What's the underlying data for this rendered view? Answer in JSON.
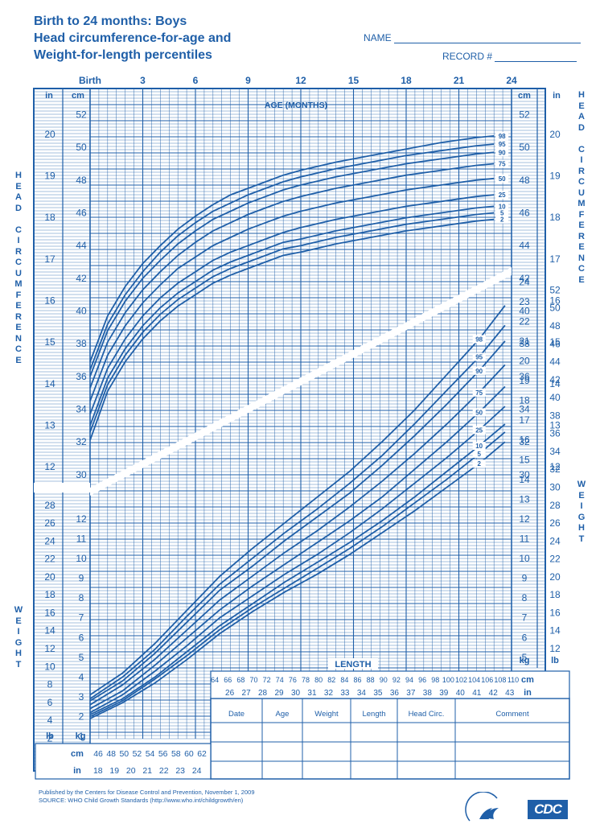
{
  "header": {
    "title_line1": "Birth to 24 months: Boys",
    "title_line2": "Head circumference-for-age and",
    "title_line3": "Weight-for-length percentiles",
    "name_label": "NAME",
    "record_label": "RECORD #"
  },
  "side_labels": {
    "head_circumference": "HEAD CIRCUMFERENCE",
    "weight": "WEIGHT"
  },
  "footer": {
    "line1": "Published by the Centers for Disease Control and Prevention, November 1, 2009",
    "line2": "SOURCE:  WHO Child Growth Standards (http://www.who.int/childgrowth/en)"
  },
  "logos": {
    "cdc": "CDC"
  },
  "record_table": {
    "columns": [
      "Date",
      "Age",
      "Weight",
      "Length",
      "Head Circ.",
      "Comment"
    ],
    "rows": 3
  },
  "chart_data": [
    {
      "type": "line",
      "title": "Head circumference-for-age",
      "xlabel": "AGE (MONTHS)",
      "ylabel": "HEAD CIRCUMFERENCE",
      "x_unit_top_label": "Birth",
      "x_tick_labels": [
        "Birth",
        "3",
        "6",
        "9",
        "12",
        "15",
        "18",
        "21",
        "24"
      ],
      "xlim": [
        0,
        24
      ],
      "ylim": [
        29.5,
        53.5
      ],
      "y_units": [
        "cm",
        "in"
      ],
      "y_cm_ticks": [
        30,
        32,
        34,
        36,
        38,
        40,
        42,
        44,
        46,
        48,
        50,
        52
      ],
      "y_in_ticks": [
        12,
        13,
        14,
        15,
        16,
        17,
        18,
        19,
        20
      ],
      "grid": true,
      "x": [
        0,
        1,
        2,
        3,
        4,
        5,
        6,
        7,
        8,
        9,
        10,
        11,
        12,
        14,
        16,
        18,
        20,
        22,
        23
      ],
      "series": [
        {
          "name": "2",
          "values": [
            32.1,
            35.1,
            36.9,
            38.3,
            39.4,
            40.3,
            41.0,
            41.7,
            42.2,
            42.6,
            43.0,
            43.4,
            43.6,
            44.1,
            44.5,
            44.9,
            45.2,
            45.5,
            45.6
          ]
        },
        {
          "name": "5",
          "values": [
            32.6,
            35.5,
            37.3,
            38.7,
            39.8,
            40.7,
            41.4,
            42.1,
            42.6,
            43.0,
            43.4,
            43.8,
            44.0,
            44.5,
            44.9,
            45.3,
            45.6,
            45.9,
            46.0
          ]
        },
        {
          "name": "10",
          "values": [
            33.0,
            35.9,
            37.7,
            39.1,
            40.2,
            41.1,
            41.8,
            42.5,
            43.0,
            43.4,
            43.8,
            44.2,
            44.4,
            44.9,
            45.3,
            45.7,
            46.0,
            46.3,
            46.4
          ]
        },
        {
          "name": "25",
          "values": [
            33.7,
            36.5,
            38.3,
            39.7,
            40.8,
            41.7,
            42.4,
            43.1,
            43.6,
            44.0,
            44.4,
            44.8,
            45.1,
            45.6,
            46.0,
            46.4,
            46.7,
            47.0,
            47.1
          ]
        },
        {
          "name": "50",
          "values": [
            34.5,
            37.3,
            39.1,
            40.5,
            41.6,
            42.6,
            43.3,
            44.0,
            44.5,
            45.0,
            45.4,
            45.8,
            46.1,
            46.6,
            47.0,
            47.4,
            47.7,
            48.0,
            48.1
          ]
        },
        {
          "name": "75",
          "values": [
            35.3,
            38.1,
            39.9,
            41.3,
            42.4,
            43.4,
            44.2,
            44.9,
            45.4,
            45.9,
            46.3,
            46.7,
            47.0,
            47.5,
            47.9,
            48.3,
            48.6,
            48.9,
            49.0
          ]
        },
        {
          "name": "90",
          "values": [
            36.0,
            38.8,
            40.6,
            42.0,
            43.1,
            44.1,
            44.9,
            45.6,
            46.1,
            46.6,
            47.0,
            47.4,
            47.7,
            48.2,
            48.6,
            49.0,
            49.3,
            49.6,
            49.7
          ]
        },
        {
          "name": "95",
          "values": [
            36.4,
            39.2,
            41.0,
            42.4,
            43.6,
            44.6,
            45.4,
            46.1,
            46.6,
            47.1,
            47.5,
            47.9,
            48.2,
            48.7,
            49.1,
            49.5,
            49.8,
            50.1,
            50.2
          ]
        },
        {
          "name": "98",
          "values": [
            36.9,
            39.7,
            41.5,
            42.9,
            44.0,
            45.0,
            45.8,
            46.5,
            47.1,
            47.5,
            47.9,
            48.3,
            48.6,
            49.1,
            49.5,
            49.9,
            50.3,
            50.6,
            50.7
          ]
        }
      ]
    },
    {
      "type": "line",
      "title": "Weight-for-length",
      "xlabel": "LENGTH",
      "ylabel": "WEIGHT",
      "x_units": [
        "cm",
        "in"
      ],
      "xlim": [
        45,
        110
      ],
      "x_cm_ticks_bottom": [
        46,
        48,
        50,
        52,
        54,
        56,
        58,
        60,
        62
      ],
      "x_in_ticks_bottom": [
        18,
        19,
        20,
        21,
        22,
        23,
        24
      ],
      "x_cm_ticks_right": [
        64,
        66,
        68,
        70,
        72,
        74,
        76,
        78,
        80,
        82,
        84,
        86,
        88,
        90,
        92,
        94,
        96,
        98,
        100,
        102,
        104,
        106,
        108,
        110
      ],
      "x_in_ticks_right": [
        26,
        27,
        28,
        29,
        30,
        31,
        32,
        33,
        34,
        35,
        36,
        37,
        38,
        39,
        40,
        41,
        42,
        43
      ],
      "ylim": [
        0.8,
        24.5
      ],
      "y_units": [
        "kg",
        "lb"
      ],
      "y_kg_ticks_left": [
        1,
        2,
        3,
        4,
        5,
        6,
        7,
        8,
        9,
        10,
        11,
        12
      ],
      "y_lb_ticks_left": [
        2,
        4,
        6,
        8,
        10,
        12,
        14,
        16,
        18,
        20,
        22,
        24,
        26,
        28
      ],
      "y_kg_ticks_right": [
        5,
        6,
        7,
        8,
        9,
        10,
        11,
        12,
        13,
        14,
        15,
        16,
        17,
        18,
        19,
        20,
        21,
        22,
        23,
        24
      ],
      "y_lb_ticks_right": [
        12,
        14,
        16,
        18,
        20,
        22,
        24,
        26,
        28,
        30,
        32,
        34,
        36,
        38,
        40,
        42,
        44,
        46,
        48,
        50,
        52
      ],
      "grid": true,
      "x": [
        45,
        50,
        55,
        60,
        65,
        70,
        75,
        80,
        85,
        90,
        95,
        100,
        105,
        109
      ],
      "series": [
        {
          "name": "2",
          "values": [
            1.9,
            2.7,
            3.7,
            4.9,
            6.2,
            7.3,
            8.3,
            9.2,
            10.2,
            11.3,
            12.4,
            13.6,
            14.8,
            15.9
          ]
        },
        {
          "name": "5",
          "values": [
            2.0,
            2.8,
            3.9,
            5.1,
            6.4,
            7.5,
            8.5,
            9.5,
            10.5,
            11.6,
            12.8,
            14.0,
            15.3,
            16.4
          ]
        },
        {
          "name": "10",
          "values": [
            2.1,
            2.9,
            4.0,
            5.3,
            6.6,
            7.7,
            8.8,
            9.8,
            10.8,
            11.9,
            13.1,
            14.4,
            15.7,
            16.8
          ]
        },
        {
          "name": "25",
          "values": [
            2.2,
            3.1,
            4.3,
            5.6,
            7.0,
            8.1,
            9.2,
            10.2,
            11.3,
            12.5,
            13.8,
            15.1,
            16.5,
            17.7
          ]
        },
        {
          "name": "50",
          "values": [
            2.4,
            3.3,
            4.6,
            6.0,
            7.4,
            8.6,
            9.7,
            10.8,
            11.9,
            13.1,
            14.5,
            15.9,
            17.4,
            18.7
          ]
        },
        {
          "name": "75",
          "values": [
            2.6,
            3.6,
            4.9,
            6.4,
            7.9,
            9.1,
            10.3,
            11.4,
            12.6,
            13.9,
            15.3,
            16.8,
            18.4,
            19.8
          ]
        },
        {
          "name": "90",
          "values": [
            2.8,
            3.8,
            5.2,
            6.8,
            8.4,
            9.6,
            10.9,
            12.1,
            13.3,
            14.7,
            16.2,
            17.8,
            19.5,
            21.0
          ]
        },
        {
          "name": "95",
          "values": [
            2.9,
            4.0,
            5.4,
            7.1,
            8.7,
            10.0,
            11.3,
            12.5,
            13.8,
            15.2,
            16.8,
            18.5,
            20.2,
            21.8
          ]
        },
        {
          "name": "98",
          "values": [
            3.1,
            4.2,
            5.7,
            7.4,
            9.1,
            10.5,
            11.8,
            13.1,
            14.4,
            15.9,
            17.5,
            19.3,
            21.1,
            22.8
          ]
        }
      ]
    }
  ]
}
